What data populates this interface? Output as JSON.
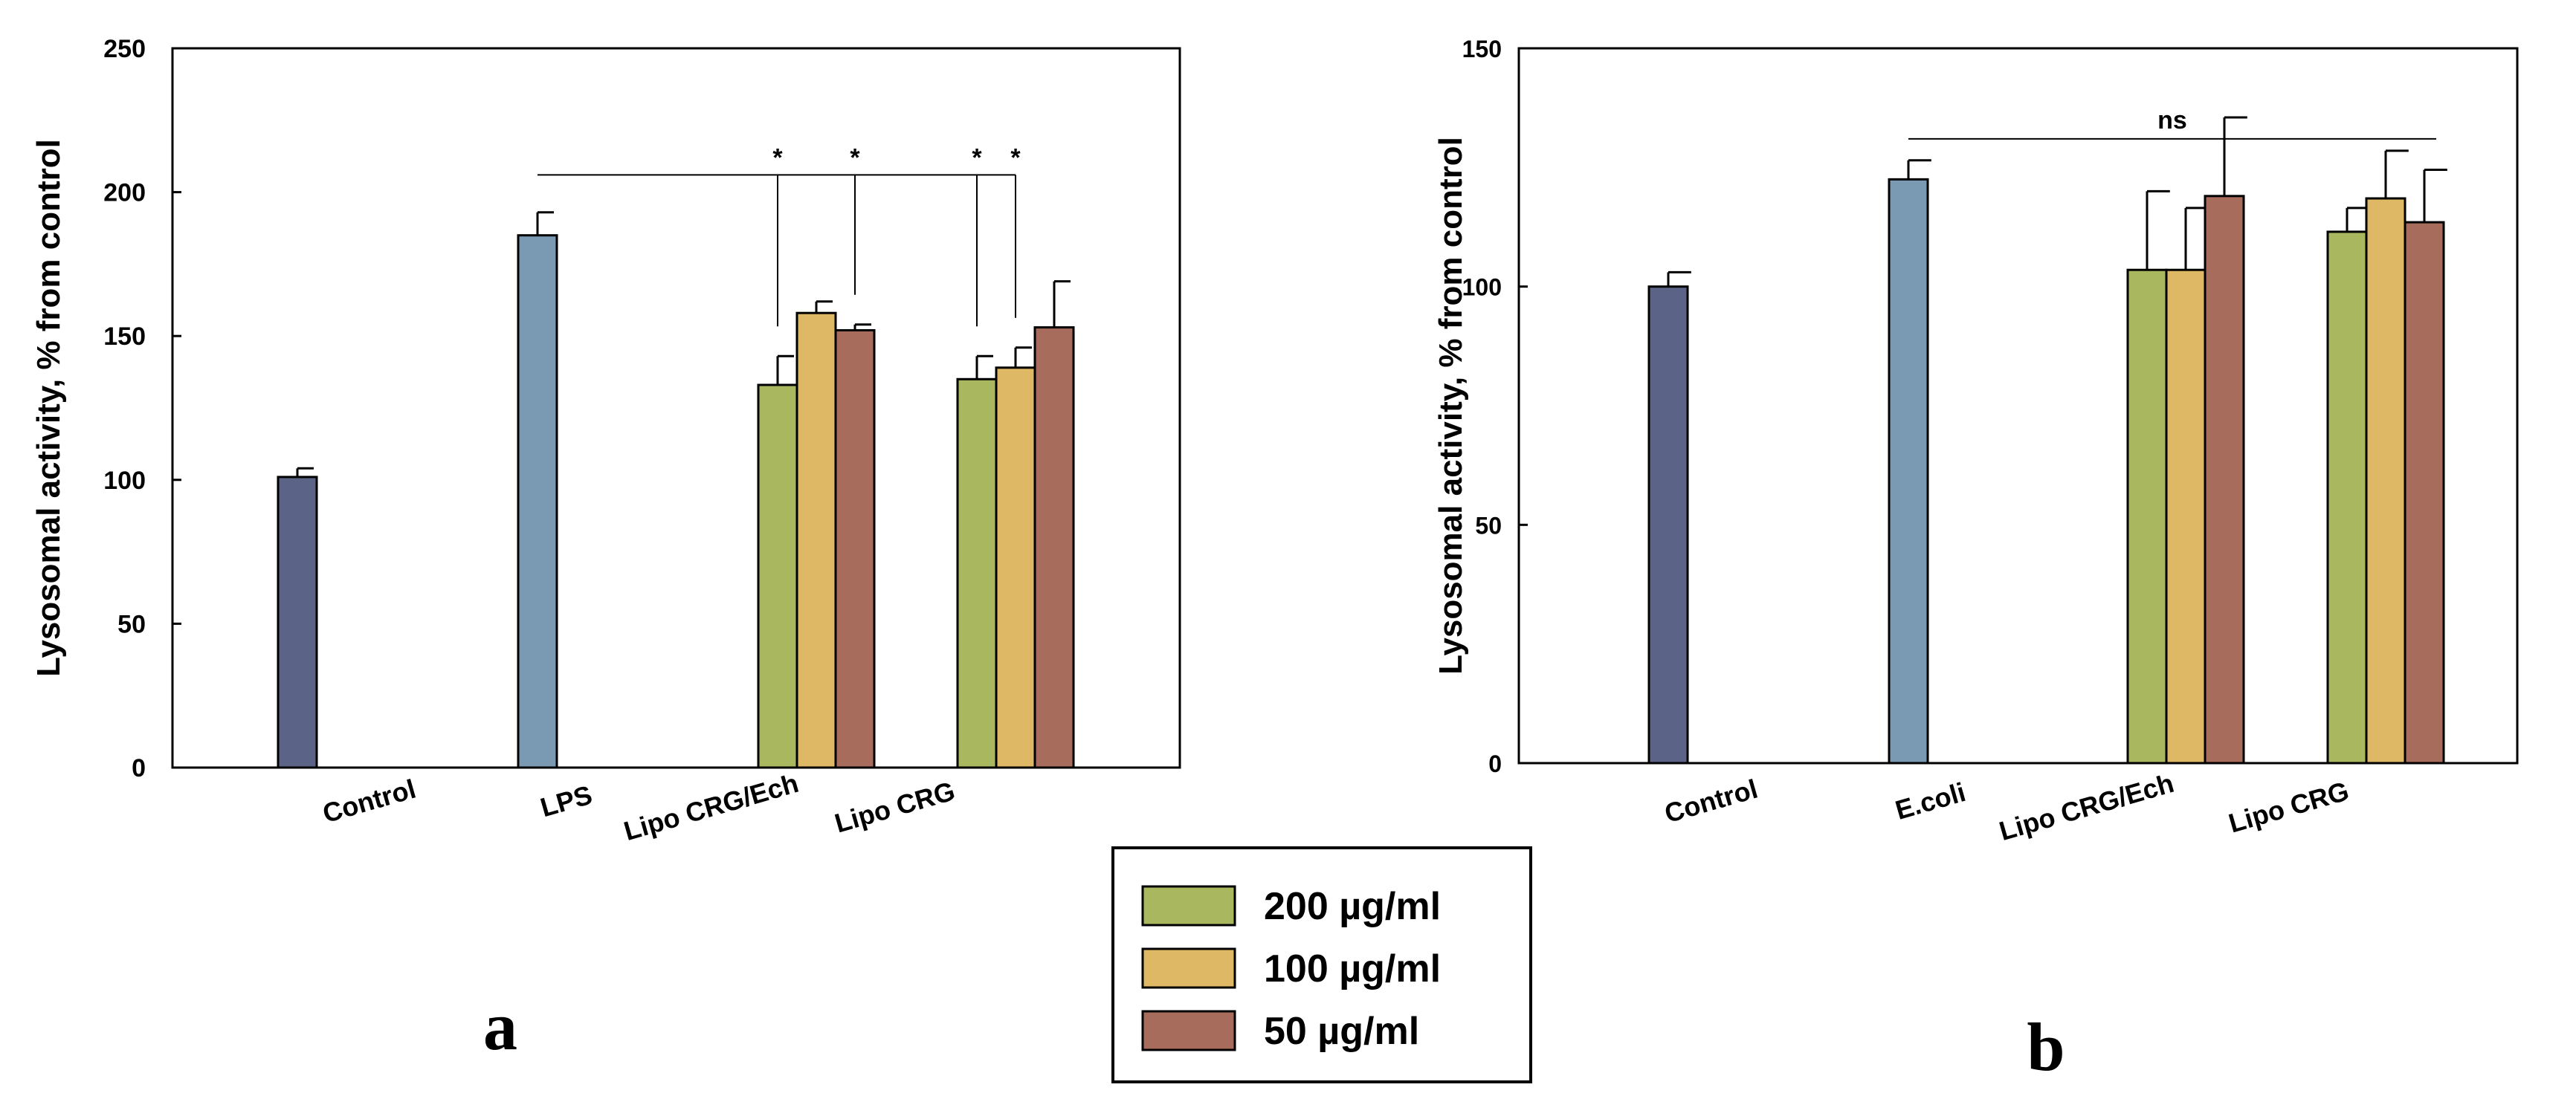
{
  "chart_data": [
    {
      "type": "bar",
      "panel": "a",
      "ylabel": "Lysosomal activity, % from control",
      "xlabel": "",
      "ylim": [
        0,
        250
      ],
      "yticks": [
        0,
        50,
        100,
        150,
        200,
        250
      ],
      "categories": [
        "Control",
        "LPS",
        "Lipo CRG/Ech",
        "Lipo CRG"
      ],
      "bars": [
        {
          "category": "Control",
          "series": "Control",
          "value": 101,
          "error": 3
        },
        {
          "category": "LPS",
          "series": "LPS",
          "value": 185,
          "error": 8
        },
        {
          "category": "Lipo CRG/Ech",
          "series": "200 µg/ml",
          "value": 133,
          "error": 10
        },
        {
          "category": "Lipo CRG/Ech",
          "series": "100 µg/ml",
          "value": 158,
          "error": 4
        },
        {
          "category": "Lipo CRG/Ech",
          "series": "50 µg/ml",
          "value": 152,
          "error": 2
        },
        {
          "category": "Lipo CRG",
          "series": "200 µg/ml",
          "value": 135,
          "error": 8
        },
        {
          "category": "Lipo CRG",
          "series": "100 µg/ml",
          "value": 139,
          "error": 7
        },
        {
          "category": "Lipo CRG",
          "series": "50 µg/ml",
          "value": 153,
          "error": 16
        }
      ],
      "annotation": {
        "from_category": "LPS",
        "line_value": 206,
        "marks": [
          {
            "category": "Lipo CRG/Ech",
            "series": "200 µg/ml",
            "label": "*"
          },
          {
            "category": "Lipo CRG/Ech",
            "series": "50 µg/ml",
            "label": "*"
          },
          {
            "category": "Lipo CRG",
            "series": "200 µg/ml",
            "label": "*"
          },
          {
            "category": "Lipo CRG",
            "series": "100 µg/ml",
            "label": "*"
          }
        ]
      }
    },
    {
      "type": "bar",
      "panel": "b",
      "ylabel": "Lysosomal activity, % from control",
      "xlabel": "",
      "ylim": [
        0,
        150
      ],
      "yticks": [
        0,
        50,
        100,
        150
      ],
      "categories": [
        "Control",
        "E.coli",
        "Lipo CRG/Ech",
        "Lipo CRG"
      ],
      "bars": [
        {
          "category": "Control",
          "series": "Control",
          "value": 100,
          "error": 3
        },
        {
          "category": "E.coli",
          "series": "E.coli",
          "value": 122.5,
          "error": 4
        },
        {
          "category": "Lipo CRG/Ech",
          "series": "200 µg/ml",
          "value": 103.5,
          "error": 16.5
        },
        {
          "category": "Lipo CRG/Ech",
          "series": "100 µg/ml",
          "value": 103.5,
          "error": 13
        },
        {
          "category": "Lipo CRG/Ech",
          "series": "50 µg/ml",
          "value": 119,
          "error": 16.5
        },
        {
          "category": "Lipo CRG",
          "series": "200 µg/ml",
          "value": 111.5,
          "error": 5
        },
        {
          "category": "Lipo CRG",
          "series": "100 µg/ml",
          "value": 118.5,
          "error": 10
        },
        {
          "category": "Lipo CRG",
          "series": "50 µg/ml",
          "value": 113.5,
          "error": 11
        }
      ],
      "annotation": {
        "from_category": "E.coli",
        "line_value": 131,
        "label": "ns"
      }
    }
  ],
  "legend": {
    "items": [
      {
        "label": "200 µg/ml",
        "color": "#a9b85f"
      },
      {
        "label": "100 µg/ml",
        "color": "#dfb865"
      },
      {
        "label": "50 µg/ml",
        "color": "#a86c5c"
      }
    ]
  },
  "panel_labels": {
    "a": "a",
    "b": "b"
  },
  "colors": {
    "Control": "#5b6487",
    "LPS": "#7a9ab4",
    "E.coli": "#7a9ab4",
    "200 µg/ml": "#a9b85f",
    "100 µg/ml": "#dfb865",
    "50 µg/ml": "#a86c5c"
  }
}
